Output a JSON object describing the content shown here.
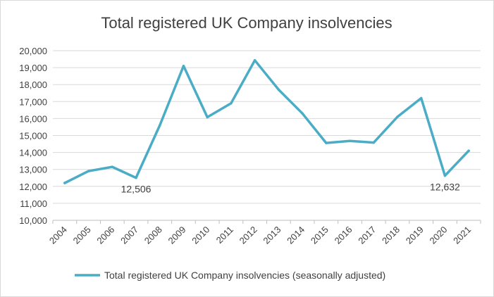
{
  "chart_data": {
    "type": "line",
    "title": "Total registered UK Company insolvencies",
    "x": [
      "2004",
      "2005",
      "2006",
      "2007",
      "2008",
      "2009",
      "2010",
      "2011",
      "2012",
      "2013",
      "2014",
      "2015",
      "2016",
      "2017",
      "2018",
      "2019",
      "2020",
      "2021"
    ],
    "series": [
      {
        "name": "Total registered UK Company insolvencies (seasonally adjusted)",
        "color": "#4bacc6",
        "values": [
          12200,
          12900,
          13150,
          12506,
          15600,
          19100,
          16080,
          16900,
          19430,
          17700,
          16300,
          14560,
          14680,
          14580,
          16100,
          17200,
          12632,
          14100
        ]
      }
    ],
    "ylim": [
      10000,
      20000
    ],
    "yticks": [
      "10,000",
      "11,000",
      "12,000",
      "13,000",
      "14,000",
      "15,000",
      "16,000",
      "17,000",
      "18,000",
      "19,000",
      "20,000"
    ],
    "data_labels": [
      {
        "x": "2007",
        "text": "12,506"
      },
      {
        "x": "2020",
        "text": "12,632"
      }
    ],
    "grid": true,
    "legend_position": "bottom"
  }
}
